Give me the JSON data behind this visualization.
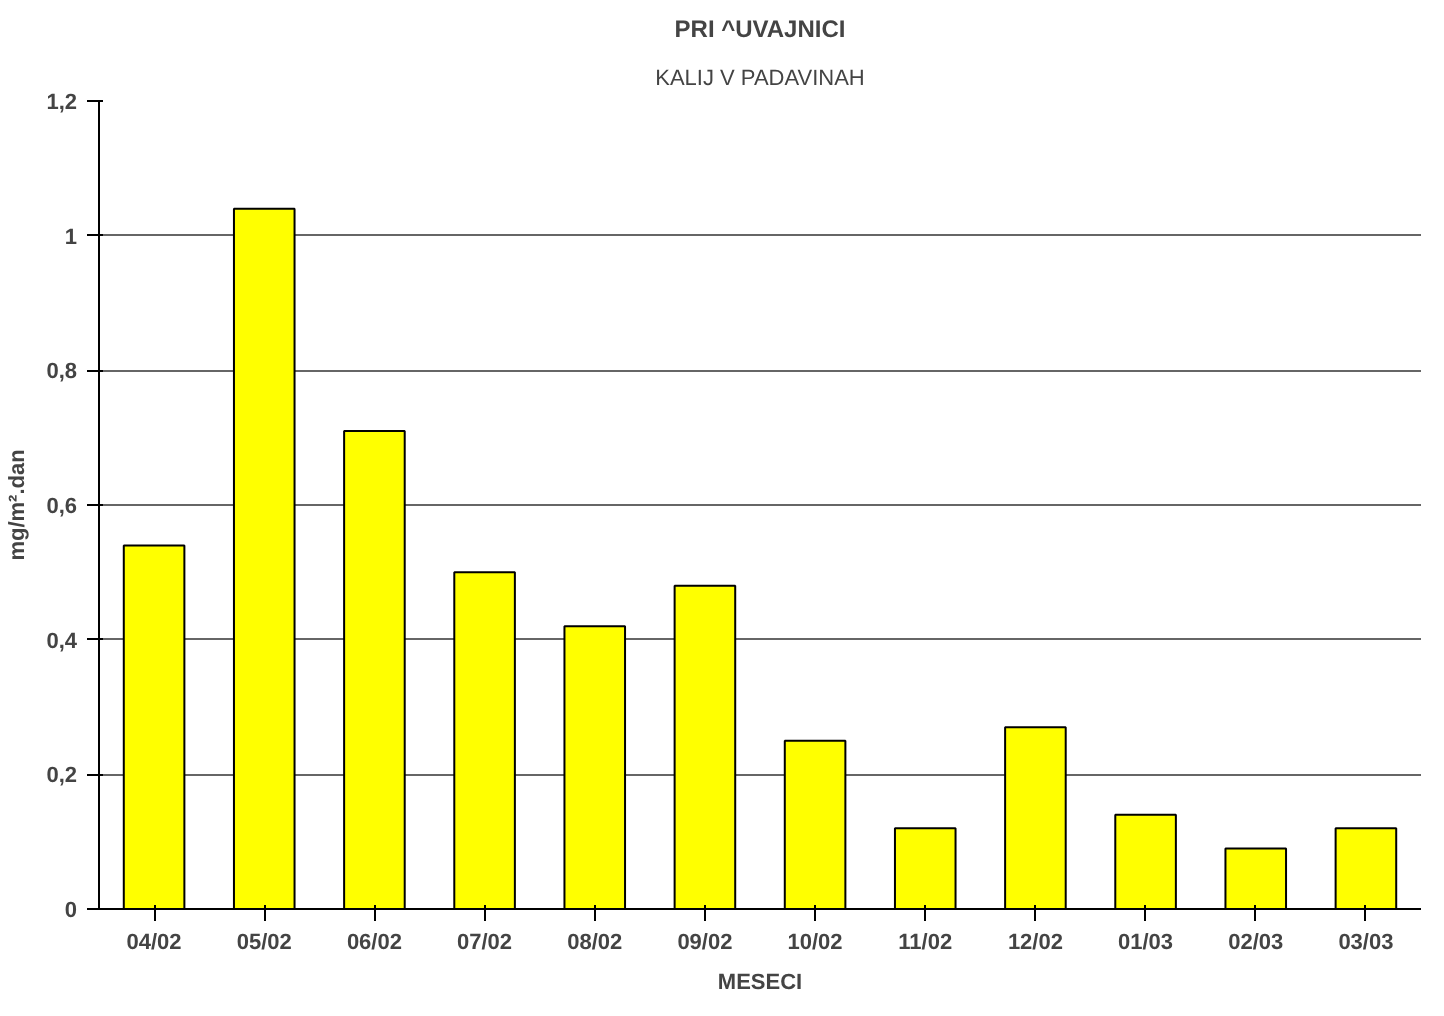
{
  "chart_data": {
    "type": "bar",
    "title": "PRI ^UVAJNICI",
    "subtitle": "KALIJ V PADAVINAH",
    "xlabel": "MESECI",
    "ylabel": "mg/m².dan",
    "categories": [
      "04/02",
      "05/02",
      "06/02",
      "07/02",
      "08/02",
      "09/02",
      "10/02",
      "11/02",
      "12/02",
      "01/03",
      "02/03",
      "03/03"
    ],
    "values": [
      0.54,
      1.04,
      0.71,
      0.5,
      0.42,
      0.48,
      0.25,
      0.12,
      0.27,
      0.14,
      0.09,
      0.12
    ],
    "color": "#ffff00",
    "ylim": [
      0,
      1.2
    ],
    "yticks": [
      0,
      {
        "value": 0.2,
        "label": "0,2"
      },
      {
        "value": 0.4,
        "label": "0,4"
      },
      {
        "value": 0.6,
        "label": "0,6"
      },
      {
        "value": 0.8,
        "label": "0,8"
      },
      1,
      {
        "value": 1.2,
        "label": "1,2"
      }
    ],
    "grid": "y"
  }
}
